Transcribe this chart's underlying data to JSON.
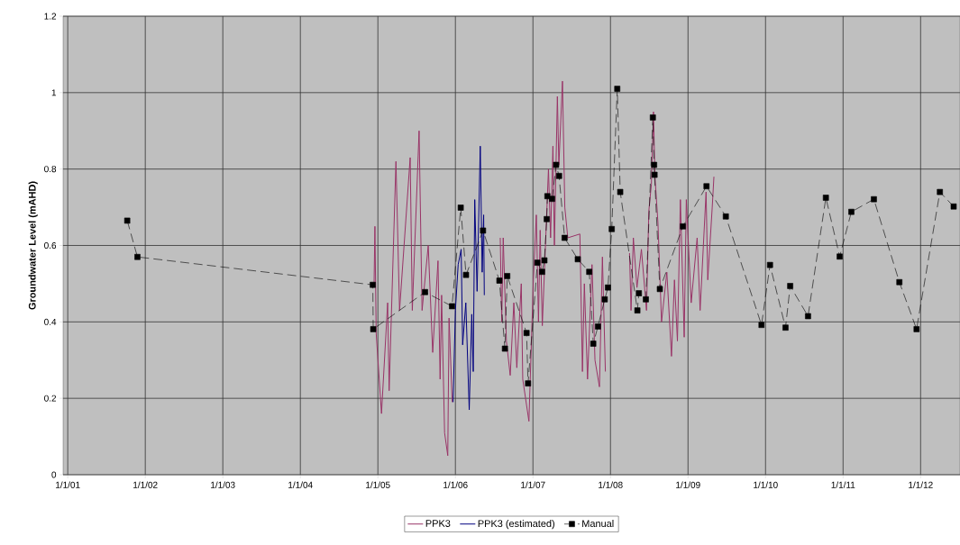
{
  "chart_data": {
    "type": "line",
    "ylabel": "Groundwater Level (mAHD)",
    "xlim": [
      "2000-12-10",
      "2012-07-05"
    ],
    "ylim": [
      0,
      1.2
    ],
    "xticks": [
      {
        "value": "2001-01-01",
        "label": "1/1/01"
      },
      {
        "value": "2002-01-01",
        "label": "1/1/02"
      },
      {
        "value": "2003-01-01",
        "label": "1/1/03"
      },
      {
        "value": "2004-01-01",
        "label": "1/1/04"
      },
      {
        "value": "2005-01-01",
        "label": "1/1/05"
      },
      {
        "value": "2006-01-01",
        "label": "1/1/06"
      },
      {
        "value": "2007-01-01",
        "label": "1/1/07"
      },
      {
        "value": "2008-01-01",
        "label": "1/1/08"
      },
      {
        "value": "2009-01-01",
        "label": "1/1/09"
      },
      {
        "value": "2010-01-01",
        "label": "1/1/10"
      },
      {
        "value": "2011-01-01",
        "label": "1/1/11"
      },
      {
        "value": "2012-01-01",
        "label": "1/1/12"
      }
    ],
    "yticks": [
      0,
      0.2,
      0.4,
      0.6,
      0.8,
      1,
      1.2
    ],
    "grid": true,
    "legend": "bottom",
    "series": [
      {
        "name": "PPK3",
        "color": "#993366",
        "x": [
          "2004-12-14",
          "2004-12-18",
          "2004-12-24",
          "2005-01-18",
          "2005-02-16",
          "2005-02-23",
          "2005-03-27",
          "2005-04-13",
          "2005-06-02",
          "2005-06-12",
          "2005-07-14",
          "2005-07-28",
          "2005-08-26",
          "2005-09-16",
          "2005-10-11",
          "2005-10-21",
          "2005-10-28",
          "2005-11-11",
          "2005-11-26",
          "2005-12-02",
          "2005-12-17",
          "2006-04-01",
          "2006-07-31",
          "2006-08-07",
          "2006-08-14",
          "2006-08-29",
          "2006-09-16",
          "2006-10-03",
          "2006-10-17",
          "2006-11-07",
          "2006-11-14",
          "2006-12-13",
          "2007-01-03",
          "2007-01-17",
          "2007-01-27",
          "2007-02-04",
          "2007-02-14",
          "2007-03-15",
          "2007-03-25",
          "2007-04-05",
          "2007-04-12",
          "2007-04-26",
          "2007-05-03",
          "2007-05-20",
          "2007-05-31",
          "2007-06-14",
          "2007-08-10",
          "2007-08-22",
          "2007-08-31",
          "2007-09-15",
          "2007-10-06",
          "2007-10-20",
          "2007-11-10",
          "2007-11-24",
          "2007-12-08",
          "2008-02-15",
          "2008-03-31",
          "2008-04-07",
          "2008-04-18",
          "2008-05-05",
          "2008-05-26",
          "2008-06-19",
          "2008-06-30",
          "2008-07-12",
          "2008-07-22",
          "2008-07-29",
          "2008-08-12",
          "2008-08-29",
          "2008-09-23",
          "2008-10-15",
          "2008-10-29",
          "2008-11-12",
          "2008-11-26",
          "2008-12-14",
          "2008-12-24",
          "2009-01-16",
          "2009-02-13",
          "2009-02-27",
          "2009-03-27",
          "2009-04-04",
          "2009-04-25",
          "2009-05-03"
        ],
        "values": [
          0.5,
          0.65,
          0.37,
          0.16,
          0.45,
          0.22,
          0.82,
          0.43,
          0.83,
          0.43,
          0.9,
          0.43,
          0.6,
          0.32,
          0.56,
          0.25,
          0.47,
          0.11,
          0.05,
          0.41,
          0.19,
          null,
          0.62,
          0.4,
          0.62,
          0.35,
          0.26,
          0.45,
          0.28,
          0.5,
          0.25,
          0.14,
          0.51,
          0.68,
          0.4,
          0.64,
          0.39,
          0.8,
          0.62,
          0.86,
          0.6,
          0.99,
          0.81,
          1.03,
          0.7,
          0.62,
          0.63,
          0.27,
          0.5,
          0.25,
          0.55,
          0.3,
          0.23,
          0.57,
          0.27,
          null,
          0.58,
          0.43,
          0.62,
          0.49,
          0.59,
          0.43,
          0.69,
          0.76,
          0.95,
          0.78,
          0.66,
          0.4,
          0.53,
          0.31,
          0.51,
          0.35,
          0.72,
          0.36,
          0.72,
          0.45,
          0.62,
          0.43,
          0.74,
          0.51,
          0.7,
          0.78
        ]
      },
      {
        "name": "PPK3 (estimated)",
        "color": "#000080",
        "x": [
          "2005-12-21",
          "2006-01-01",
          "2006-01-14",
          "2006-01-28",
          "2006-02-04",
          "2006-02-19",
          "2006-03-07",
          "2006-03-19",
          "2006-03-26",
          "2006-04-02",
          "2006-04-13",
          "2006-04-28",
          "2006-05-07",
          "2006-05-14",
          "2006-05-17"
        ],
        "values": [
          0.19,
          0.43,
          0.55,
          0.59,
          0.34,
          0.45,
          0.17,
          0.42,
          0.27,
          0.72,
          0.48,
          0.86,
          0.53,
          0.68,
          0.47
        ]
      },
      {
        "name": "Manual",
        "color": "#000000",
        "marker": "square",
        "line_style": "dashed",
        "x": [
          "2001-10-08",
          "2001-11-25",
          "2004-12-08",
          "2004-12-10",
          "2005-08-11",
          "2005-12-16",
          "2006-01-26",
          "2006-02-20",
          "2006-05-11",
          "2006-07-27",
          "2006-08-22",
          "2006-09-02",
          "2006-12-02",
          "2006-12-09",
          "2007-01-22",
          "2007-02-13",
          "2007-02-24",
          "2007-03-07",
          "2007-03-10",
          "2007-04-01",
          "2007-04-20",
          "2007-05-04",
          "2007-05-30",
          "2007-07-31",
          "2007-09-23",
          "2007-10-12",
          "2007-11-03",
          "2007-12-05",
          "2007-12-20",
          "2008-01-07",
          "2008-02-02",
          "2008-02-16",
          "2008-05-07",
          "2008-05-14",
          "2008-06-16",
          "2008-07-19",
          "2008-07-25",
          "2008-07-27",
          "2008-08-21",
          "2008-12-08",
          "2009-03-29",
          "2009-06-28",
          "2009-12-13",
          "2010-01-22",
          "2010-04-05",
          "2010-04-27",
          "2010-07-20",
          "2010-10-12",
          "2010-12-16",
          "2011-02-09",
          "2011-05-26",
          "2011-09-23",
          "2011-12-13",
          "2012-04-01",
          "2012-06-05"
        ],
        "values": [
          0.665,
          0.57,
          0.497,
          0.381,
          0.478,
          0.441,
          0.699,
          0.523,
          0.639,
          0.508,
          0.33,
          0.52,
          0.371,
          0.239,
          0.555,
          0.531,
          0.561,
          0.669,
          0.729,
          0.722,
          0.811,
          0.782,
          0.62,
          0.564,
          0.531,
          0.343,
          0.388,
          0.459,
          0.49,
          0.643,
          1.01,
          0.74,
          0.43,
          0.475,
          0.459,
          0.935,
          0.811,
          0.785,
          0.486,
          0.65,
          0.755,
          0.676,
          0.392,
          0.549,
          0.385,
          0.494,
          0.415,
          0.725,
          0.571,
          0.688,
          0.721,
          0.504,
          0.381,
          0.74,
          0.702
        ]
      }
    ]
  }
}
